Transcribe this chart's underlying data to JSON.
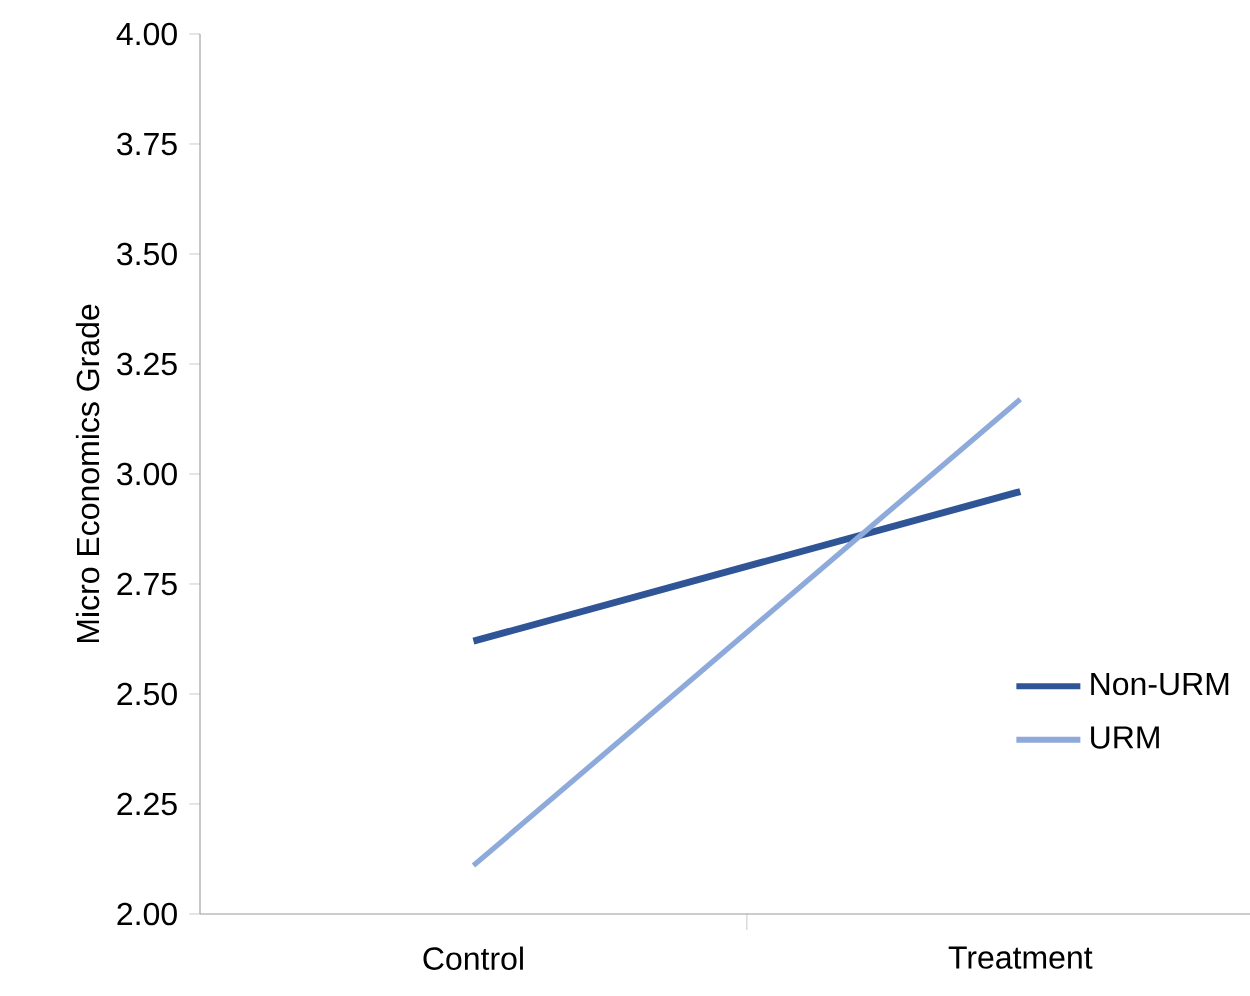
{
  "chart_data": {
    "type": "line",
    "ylabel": "Micro Economics Grade",
    "categories": [
      "Control",
      "Treatment"
    ],
    "series": [
      {
        "name": "Non-URM",
        "color": "#2f5597",
        "values": [
          2.62,
          2.96
        ]
      },
      {
        "name": "URM",
        "color": "#8eaadb",
        "values": [
          2.11,
          3.17
        ]
      }
    ],
    "ylim": [
      2.0,
      4.0
    ],
    "yticks": [
      {
        "value": 2.0,
        "label": "2.00"
      },
      {
        "value": 2.25,
        "label": "2.25"
      },
      {
        "value": 2.5,
        "label": "2.50"
      },
      {
        "value": 2.75,
        "label": "2.75"
      },
      {
        "value": 3.0,
        "label": "3.00"
      },
      {
        "value": 3.25,
        "label": "3.25"
      },
      {
        "value": 3.5,
        "label": "3.50"
      },
      {
        "value": 3.75,
        "label": "3.75"
      },
      {
        "value": 4.0,
        "label": "4.00"
      }
    ],
    "grid": false,
    "legend": "bottom right",
    "marker": "none",
    "line_style": "solid"
  }
}
